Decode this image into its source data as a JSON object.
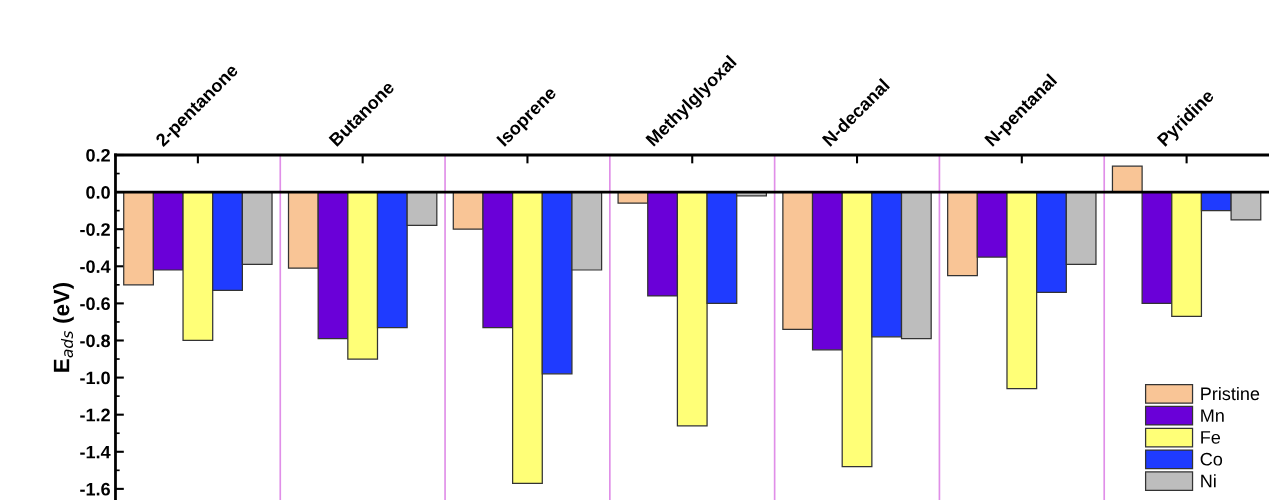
{
  "chart_data": {
    "type": "bar",
    "ylabel": "E$_{ads}$ (eV)",
    "categories": [
      "2-pentanone",
      "Butanone",
      "Isoprene",
      "Methylglyoxal",
      "N-decanal",
      "N-pentanal",
      "Pyridine"
    ],
    "series": [
      {
        "name": "Pristine",
        "color": "#f9c596",
        "values": [
          -0.5,
          -0.41,
          -0.2,
          -0.06,
          -0.74,
          -0.45,
          0.14
        ]
      },
      {
        "name": "Mn",
        "color": "#6a00d8",
        "values": [
          -0.42,
          -0.79,
          -0.73,
          -0.56,
          -0.85,
          -0.35,
          -0.6
        ]
      },
      {
        "name": "Fe",
        "color": "#ffff77",
        "values": [
          -0.8,
          -0.9,
          -1.57,
          -1.26,
          -1.48,
          -1.06,
          -0.67
        ]
      },
      {
        "name": "Co",
        "color": "#1f3bff",
        "values": [
          -0.53,
          -0.73,
          -0.98,
          -0.6,
          -0.78,
          -0.54,
          -0.1
        ]
      },
      {
        "name": "Ni",
        "color": "#bdbdbd",
        "values": [
          -0.39,
          -0.18,
          -0.42,
          -0.02,
          -0.79,
          -0.39,
          -0.15
        ]
      }
    ],
    "ylim": [
      -1.66,
      0.2
    ],
    "yticks": [
      {
        "value": -1.6,
        "label": "-1.6"
      },
      {
        "value": -1.4,
        "label": "-1.4"
      },
      {
        "value": -1.2,
        "label": "-1.2"
      },
      {
        "value": -1.0,
        "label": "-1.0"
      },
      {
        "value": -0.8,
        "label": "-0.8"
      },
      {
        "value": -0.6,
        "label": "-0.6"
      },
      {
        "value": -0.4,
        "label": "-0.4"
      },
      {
        "value": -0.2,
        "label": "-0.2"
      },
      {
        "value": 0.0,
        "label": "0.0"
      },
      {
        "value": 0.2,
        "label": "0.2"
      }
    ],
    "ref_lines": [
      {
        "axis": "y",
        "value": 0,
        "color": "#000000"
      }
    ],
    "legend": "bottom right"
  }
}
